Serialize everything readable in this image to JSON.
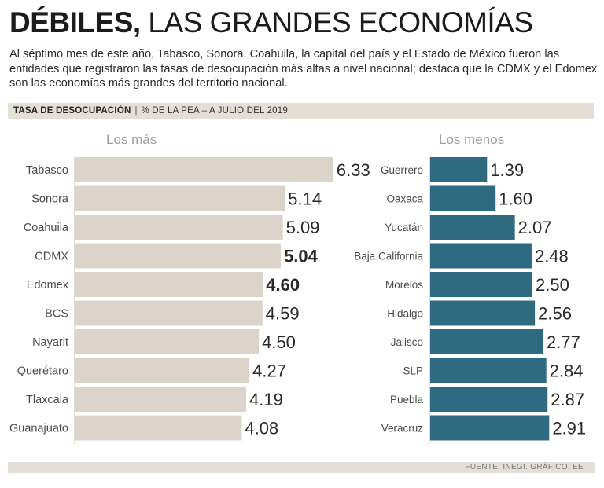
{
  "header": {
    "title_bold": "DÉBILES,",
    "title_light": "LAS GRANDES ECONOMÍAS",
    "subtitle": "Al séptimo mes de este año, Tabasco, Sonora, Coahuila, la capital del país y el Estado de México fueron las entidades que registraron las tasas de desocupación más altas a nivel nacional; destaca que la CDMX y el Edomex son las economías más grandes del territorio nacional."
  },
  "measure": {
    "label": "TASA DE DESOCUPACIÓN",
    "separator": "|",
    "unit": "% DE LA PEA – A JULIO DEL 2019"
  },
  "footer": {
    "source": "FUENTE: INEGI.  GRÁFICO: EE"
  },
  "colors": {
    "left_bar": "#dcd4c8",
    "right_bar": "#2e6b80",
    "panel_title": "#9e9e9e",
    "label": "#4a4a4a",
    "value": "#2a2a2a"
  },
  "chart_data": [
    {
      "type": "bar",
      "orientation": "horizontal",
      "title": "Los más",
      "categories": [
        "Tabasco",
        "Sonora",
        "Coahuila",
        "CDMX",
        "Edomex",
        "BCS",
        "Nayarit",
        "Querétaro",
        "Tlaxcala",
        "Guanajuato"
      ],
      "values": [
        6.33,
        5.14,
        5.09,
        5.04,
        4.6,
        4.59,
        4.5,
        4.27,
        4.19,
        4.08
      ],
      "value_labels": [
        "6.33",
        "5.14",
        "5.09",
        "5.04",
        "4.60",
        "4.59",
        "4.50",
        "4.27",
        "4.19",
        "4.08"
      ],
      "highlighted": [
        "CDMX",
        "Edomex"
      ]
    },
    {
      "type": "bar",
      "orientation": "horizontal",
      "title": "Los menos",
      "categories": [
        "Guerrero",
        "Oaxaca",
        "Yucatán",
        "Baja California",
        "Morelos",
        "Hidalgo",
        "Jalisco",
        "SLP",
        "Puebla",
        "Veracruz"
      ],
      "values": [
        1.39,
        1.6,
        2.07,
        2.48,
        2.5,
        2.56,
        2.77,
        2.84,
        2.87,
        2.91
      ],
      "value_labels": [
        "1.39",
        "1.60",
        "2.07",
        "2.48",
        "2.50",
        "2.56",
        "2.77",
        "2.84",
        "2.87",
        "2.91"
      ]
    }
  ]
}
